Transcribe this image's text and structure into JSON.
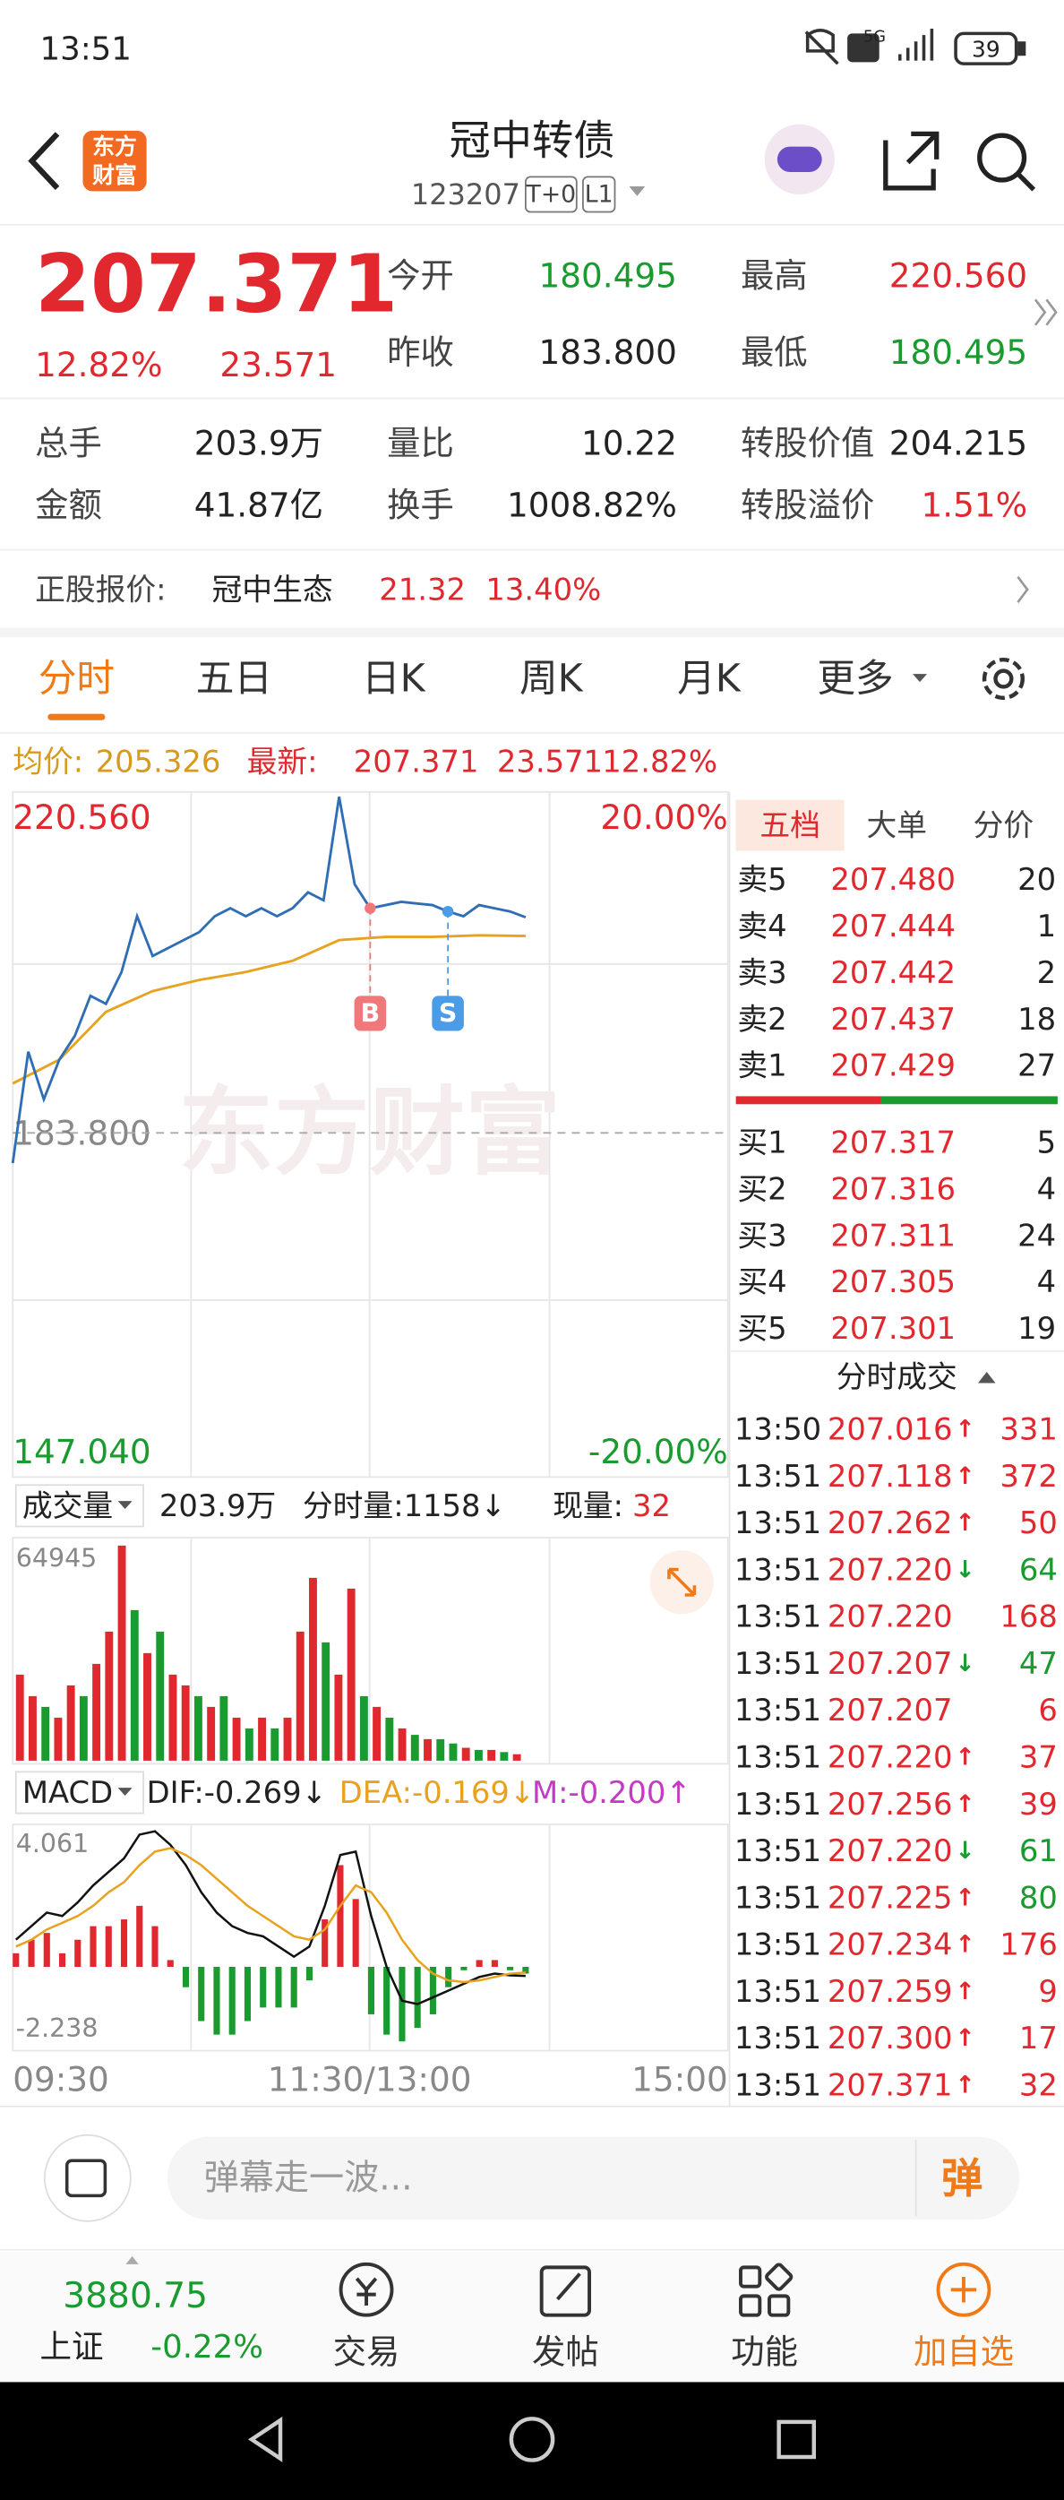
{
  "status_bar": {
    "time": "13:51",
    "network": "5G",
    "battery": "39"
  },
  "header": {
    "logo_lines": [
      "东方",
      "财富"
    ],
    "title": "冠中转债",
    "code": "123207",
    "tags": [
      "T+0",
      "L1"
    ]
  },
  "quote": {
    "price": "207.371",
    "change_pct": "12.82%",
    "change": "23.571",
    "fields": [
      {
        "label": "今开",
        "value": "180.495",
        "color": "#1a9b2f"
      },
      {
        "label": "昨收",
        "value": "183.800",
        "color": "#222222"
      },
      {
        "label": "最高",
        "value": "220.560",
        "color": "#e0282e"
      },
      {
        "label": "最低",
        "value": "180.495",
        "color": "#1a9b2f"
      }
    ]
  },
  "stats": [
    [
      {
        "label": "总手",
        "value": "203.9万"
      },
      {
        "label": "量比",
        "value": "10.22"
      },
      {
        "label": "转股价值",
        "value": "204.215"
      }
    ],
    [
      {
        "label": "金额",
        "value": "41.87亿"
      },
      {
        "label": "换手",
        "value": "1008.82%"
      },
      {
        "label": "转股溢价",
        "value": "1.51%",
        "color": "#e0282e"
      }
    ]
  ],
  "stock": {
    "label": "正股报价:",
    "name": "冠中生态",
    "price": "21.32",
    "change": "13.40%"
  },
  "tabs": [
    "分时",
    "五日",
    "日K",
    "周K",
    "月K",
    "更多"
  ],
  "info": {
    "avg_label": "均价:",
    "avg": "205.326",
    "last_label": "最新:",
    "last": "207.371",
    "change": "23.571",
    "pct": "12.82%"
  },
  "price_chart": {
    "type": "line",
    "watermark": "东方财富",
    "ylim": [
      147.04,
      220.56
    ],
    "yticks": [
      {
        "value": 220.56,
        "label": "220.560"
      },
      {
        "value": 183.8,
        "label": "183.800"
      },
      {
        "value": 147.04,
        "label": "147.040"
      }
    ],
    "pct_labels": [
      "20.00%",
      "-20.00%"
    ],
    "xlabels": [
      "09:30",
      "11:30/13:00",
      "15:00"
    ],
    "series": [
      {
        "color": "#2f6db5",
        "values": [
          180.495,
          192.68,
          187.46,
          191.81,
          194.43,
          198.78,
          197.91,
          201.39,
          207.49,
          203.14,
          204.01,
          204.88,
          205.75,
          207.49,
          208.36,
          207.49,
          208.36,
          207.49,
          208.36,
          210.1,
          209.23,
          220.56,
          210.98,
          208.36,
          208.71,
          209.06,
          208.88,
          208.71,
          208.01,
          207.49,
          208.71,
          208.36,
          208.01,
          207.371
        ]
      },
      {
        "color": "#e8a21f",
        "values": [
          189.2,
          191.81,
          197.04,
          199.3,
          200.52,
          201.39,
          202.61,
          204.88,
          205.23,
          205.23,
          205.4,
          205.326
        ]
      }
    ],
    "markers": [
      {
        "label": "B",
        "at": 23,
        "color": "#f0787a"
      },
      {
        "label": "S",
        "at": 28,
        "color": "#4a9be8"
      }
    ]
  },
  "volume_chart": {
    "type": "bar",
    "label": "成交量",
    "total": "203.9万",
    "minute_vol": "分时量:1158↓",
    "now_label": "现量:",
    "now": "32",
    "ylim": [
      0,
      64945
    ],
    "yticks": [
      64945
    ],
    "up_color": "#e0282e",
    "down_color": "#1a9b2f",
    "values": [
      25978,
      19484,
      16236,
      12989,
      22731,
      19484,
      29225,
      38967,
      64945,
      45462,
      32473,
      38967,
      25978,
      22731,
      19484,
      16236,
      19484,
      12989,
      9742,
      12989,
      9742,
      12989,
      38967,
      55203,
      35720,
      25978,
      51956,
      19484,
      16236,
      12989,
      9742,
      7793,
      6495,
      6495,
      5196,
      3897,
      3247,
      3247,
      2598,
      1948
    ],
    "up": [
      true,
      true,
      false,
      true,
      true,
      false,
      true,
      true,
      true,
      false,
      true,
      false,
      true,
      true,
      false,
      true,
      false,
      true,
      false,
      true,
      false,
      true,
      true,
      true,
      false,
      true,
      true,
      false,
      true,
      false,
      true,
      false,
      true,
      false,
      false,
      true,
      false,
      true,
      false,
      true
    ]
  },
  "macd_chart": {
    "type": "macd",
    "label": "MACD",
    "dif": "DIF:-0.269↓",
    "dea": "DEA:-0.169↓",
    "m": "M:-0.200↑",
    "ylim": [
      -2.238,
      4.061
    ],
    "yticks": [
      4.061,
      -2.238
    ],
    "up_color": "#e0282e",
    "down_color": "#1a9b2f",
    "series": [
      {
        "color": "#111111",
        "values": [
          0.8,
          1.2,
          1.6,
          1.5,
          1.9,
          2.4,
          2.8,
          3.2,
          3.9,
          4.0,
          3.6,
          3.0,
          2.2,
          1.6,
          1.2,
          1.0,
          0.9,
          0.6,
          0.3,
          0.6,
          1.8,
          3.3,
          3.4,
          1.5,
          0.0,
          -1.0,
          -1.1,
          -0.9,
          -0.7,
          -0.5,
          -0.3,
          -0.2,
          -0.25,
          -0.269
        ]
      },
      {
        "color": "#e8a21f",
        "values": [
          0.6,
          0.8,
          1.1,
          1.3,
          1.5,
          1.8,
          2.2,
          2.5,
          3.0,
          3.4,
          3.5,
          3.3,
          3.0,
          2.6,
          2.2,
          1.8,
          1.5,
          1.2,
          0.9,
          0.8,
          1.1,
          1.8,
          2.4,
          2.2,
          1.6,
          0.8,
          0.2,
          -0.2,
          -0.4,
          -0.45,
          -0.4,
          -0.3,
          -0.2,
          -0.169
        ]
      }
    ],
    "bars": [
      0.4,
      0.8,
      1.0,
      0.4,
      0.8,
      1.2,
      1.2,
      1.4,
      1.8,
      1.2,
      0.2,
      -0.6,
      -1.6,
      -2.0,
      -2.0,
      -1.6,
      -1.2,
      -1.2,
      -1.2,
      -0.4,
      1.4,
      3.0,
      2.0,
      -1.4,
      -2.0,
      -2.2,
      -1.8,
      -1.4,
      -0.6,
      -0.1,
      0.2,
      0.2,
      -0.1,
      -0.2
    ]
  },
  "order_book": {
    "tabs": [
      "五档",
      "大单",
      "分价"
    ],
    "asks": [
      {
        "label": "卖5",
        "price": "207.480",
        "volume": "20"
      },
      {
        "label": "卖4",
        "price": "207.444",
        "volume": "1"
      },
      {
        "label": "卖3",
        "price": "207.442",
        "volume": "2"
      },
      {
        "label": "卖2",
        "price": "207.437",
        "volume": "18"
      },
      {
        "label": "卖1",
        "price": "207.429",
        "volume": "27"
      }
    ],
    "bids": [
      {
        "label": "买1",
        "price": "207.317",
        "volume": "5"
      },
      {
        "label": "买2",
        "price": "207.316",
        "volume": "4"
      },
      {
        "label": "买3",
        "price": "207.311",
        "volume": "24"
      },
      {
        "label": "买4",
        "price": "207.305",
        "volume": "4"
      },
      {
        "label": "买5",
        "price": "207.301",
        "volume": "19"
      }
    ]
  },
  "trades": {
    "title": "分时成交",
    "rows": [
      {
        "time": "13:50",
        "price": "207.016",
        "arrow": "↑",
        "volume": "331",
        "color": "#e0282e"
      },
      {
        "time": "13:51",
        "price": "207.118",
        "arrow": "↑",
        "volume": "372",
        "color": "#e0282e"
      },
      {
        "time": "13:51",
        "price": "207.262",
        "arrow": "↑",
        "volume": "50",
        "color": "#e0282e"
      },
      {
        "time": "13:51",
        "price": "207.220",
        "arrow": "↓",
        "volume": "64",
        "color": "#1a9b2f"
      },
      {
        "time": "13:51",
        "price": "207.220",
        "volume": "168",
        "color": "#e0282e"
      },
      {
        "time": "13:51",
        "price": "207.207",
        "arrow": "↓",
        "volume": "47",
        "color": "#1a9b2f"
      },
      {
        "time": "13:51",
        "price": "207.207",
        "volume": "6",
        "color": "#e0282e"
      },
      {
        "time": "13:51",
        "price": "207.220",
        "arrow": "↑",
        "volume": "37",
        "color": "#e0282e"
      },
      {
        "time": "13:51",
        "price": "207.256",
        "arrow": "↑",
        "volume": "39",
        "color": "#e0282e"
      },
      {
        "time": "13:51",
        "price": "207.220",
        "arrow": "↓",
        "volume": "61",
        "color": "#1a9b2f"
      },
      {
        "time": "13:51",
        "price": "207.225",
        "arrow": "↑",
        "volume": "80",
        "color": "#1a9b2f"
      },
      {
        "time": "13:51",
        "price": "207.234",
        "arrow": "↑",
        "volume": "176",
        "color": "#e0282e"
      },
      {
        "time": "13:51",
        "price": "207.259",
        "arrow": "↑",
        "volume": "9",
        "color": "#e0282e"
      },
      {
        "time": "13:51",
        "price": "207.300",
        "arrow": "↑",
        "volume": "17",
        "color": "#e0282e"
      },
      {
        "time": "13:51",
        "price": "207.371",
        "arrow": "↑",
        "volume": "32",
        "color": "#e0282e"
      }
    ]
  },
  "comment": {
    "placeholder": "弹幕走一波...",
    "button": "弹"
  },
  "nav": {
    "index_value": "3880.75",
    "index_name": "上证",
    "index_change": "-0.22%",
    "items": [
      "交易",
      "发帖",
      "功能",
      "加自选"
    ]
  }
}
